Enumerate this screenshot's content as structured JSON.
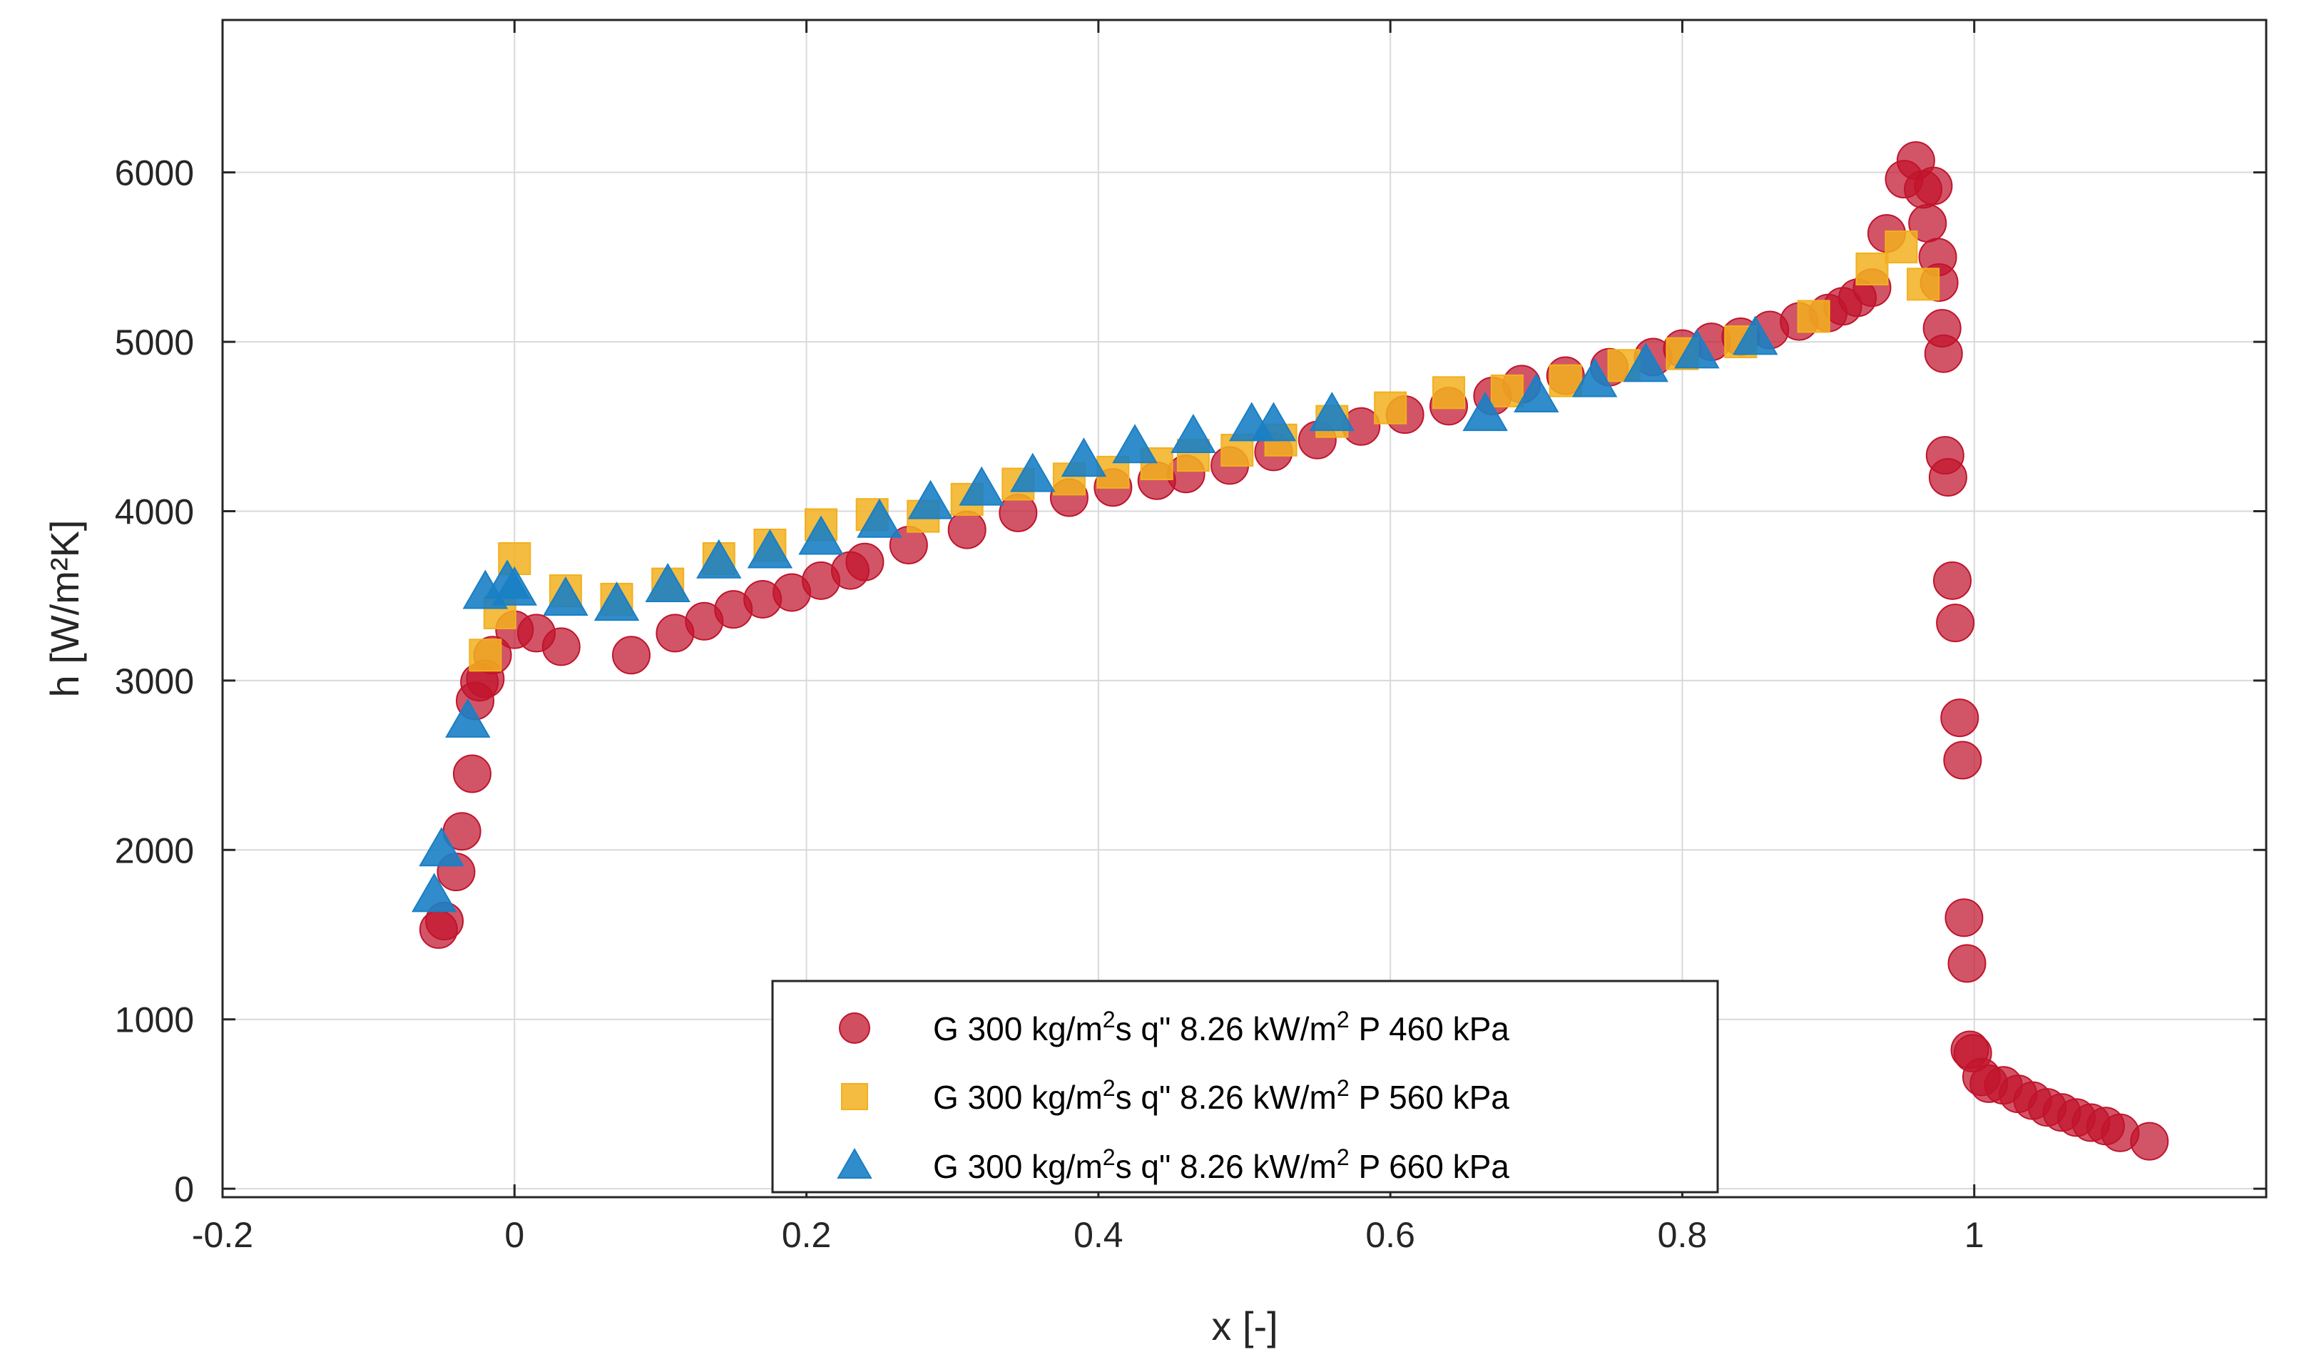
{
  "chart_data": {
    "type": "scatter",
    "title": "",
    "xlabel": "x [-]",
    "ylabel": "h [W/m²K]",
    "xlim": [
      -0.2,
      1.2
    ],
    "ylim": [
      -50,
      6900
    ],
    "xticks": [
      -0.2,
      0,
      0.2,
      0.4,
      0.6,
      0.8,
      1
    ],
    "xtick_labels": [
      "-0.2",
      "0",
      "0.2",
      "0.4",
      "0.6",
      "0.8",
      "1"
    ],
    "yticks": [
      0,
      1000,
      2000,
      3000,
      4000,
      5000,
      6000
    ],
    "ytick_labels": [
      "0",
      "1000",
      "2000",
      "3000",
      "4000",
      "5000",
      "6000"
    ],
    "grid": true,
    "legend_position": "bottom-center",
    "series": [
      {
        "name": "G 300 kg/m²s q\" 8.26 kW/m² P 460 kPa",
        "legend_parts": {
          "g": "G 300 kg/m",
          "s_sup": "2",
          "s_post": "s  q\" 8.26 kW/m",
          "q_sup": "2",
          "p": "  P 460 kPa"
        },
        "marker": "circle",
        "color": "#c0142c",
        "x": [
          -0.052,
          -0.048,
          -0.04,
          -0.036,
          -0.029,
          -0.027,
          -0.024,
          -0.02,
          -0.015,
          0.0,
          0.015,
          0.032,
          0.08,
          0.11,
          0.13,
          0.15,
          0.17,
          0.19,
          0.21,
          0.23,
          0.24,
          0.27,
          0.31,
          0.345,
          0.38,
          0.41,
          0.44,
          0.46,
          0.49,
          0.52,
          0.55,
          0.58,
          0.61,
          0.64,
          0.67,
          0.69,
          0.72,
          0.75,
          0.78,
          0.8,
          0.82,
          0.84,
          0.86,
          0.88,
          0.9,
          0.91,
          0.92,
          0.93,
          0.94,
          0.952,
          0.96,
          0.965,
          0.968,
          0.972,
          0.975,
          0.976,
          0.978,
          0.979,
          0.98,
          0.982,
          0.985,
          0.987,
          0.99,
          0.992,
          0.993,
          0.995,
          0.997,
          0.999,
          1.005,
          1.01,
          1.02,
          1.03,
          1.04,
          1.05,
          1.06,
          1.07,
          1.08,
          1.09,
          1.1,
          1.12
        ],
        "y": [
          1530,
          1580,
          1870,
          2110,
          2450,
          2880,
          2990,
          3010,
          3150,
          3300,
          3280,
          3200,
          3150,
          3280,
          3350,
          3420,
          3480,
          3520,
          3590,
          3650,
          3700,
          3800,
          3890,
          3990,
          4080,
          4140,
          4180,
          4220,
          4270,
          4350,
          4420,
          4500,
          4570,
          4620,
          4680,
          4750,
          4800,
          4850,
          4910,
          4960,
          5000,
          5030,
          5070,
          5120,
          5170,
          5210,
          5260,
          5320,
          5640,
          5960,
          6070,
          5900,
          5700,
          5920,
          5500,
          5350,
          5080,
          4930,
          4330,
          4200,
          3590,
          3340,
          2780,
          2530,
          1600,
          1330,
          820,
          800,
          660,
          620,
          610,
          560,
          520,
          480,
          450,
          420,
          390,
          370,
          330,
          280
        ]
      },
      {
        "name": "G 300 kg/m²s q\" 8.26 kW/m² P 560 kPa",
        "legend_parts": {
          "g": "G 300 kg/m",
          "s_sup": "2",
          "s_post": "s  q\" 8.26 kW/m",
          "q_sup": "2",
          "p": "  P 560 kPa"
        },
        "marker": "square",
        "color": "#f2b01e",
        "x": [
          -0.02,
          -0.01,
          0.0,
          0.035,
          0.07,
          0.105,
          0.14,
          0.175,
          0.21,
          0.245,
          0.28,
          0.31,
          0.345,
          0.38,
          0.41,
          0.44,
          0.465,
          0.495,
          0.525,
          0.56,
          0.6,
          0.64,
          0.68,
          0.72,
          0.76,
          0.8,
          0.84,
          0.89,
          0.93,
          0.95,
          0.965
        ],
        "y": [
          3150,
          3400,
          3720,
          3530,
          3480,
          3570,
          3720,
          3800,
          3920,
          3980,
          3970,
          4070,
          4160,
          4190,
          4230,
          4280,
          4330,
          4360,
          4420,
          4530,
          4610,
          4700,
          4710,
          4770,
          4860,
          4930,
          5000,
          5150,
          5430,
          5560,
          5340
        ]
      },
      {
        "name": "G 300 kg/m²s q\" 8.26 kW/m² P 660 kPa",
        "legend_parts": {
          "g": "G 300 kg/m",
          "s_sup": "2",
          "s_post": "s  q\" 8.26 kW/m",
          "q_sup": "2",
          "p": "  P 660 kPa"
        },
        "marker": "triangle",
        "color": "#1a7fc4",
        "x": [
          -0.055,
          -0.05,
          -0.032,
          -0.02,
          -0.005,
          0.0,
          0.035,
          0.07,
          0.105,
          0.14,
          0.175,
          0.21,
          0.25,
          0.285,
          0.32,
          0.355,
          0.39,
          0.425,
          0.465,
          0.505,
          0.52,
          0.56,
          0.665,
          0.7,
          0.74,
          0.775,
          0.81,
          0.85
        ],
        "y": [
          1730,
          2000,
          2760,
          3520,
          3580,
          3540,
          3480,
          3450,
          3560,
          3700,
          3760,
          3840,
          3940,
          4050,
          4130,
          4210,
          4300,
          4380,
          4440,
          4510,
          4510,
          4570,
          4570,
          4680,
          4770,
          4860,
          4940,
          5020
        ]
      }
    ]
  }
}
